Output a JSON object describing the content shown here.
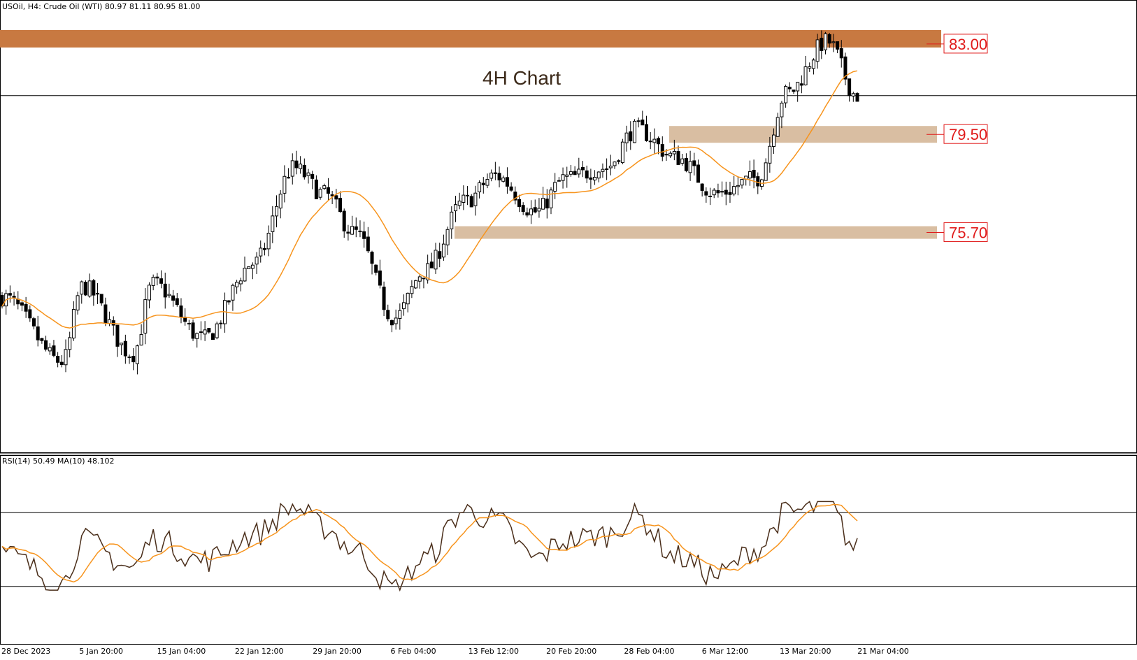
{
  "header": {
    "symbol_line": "USOil, H4:  Crude Oil (WTI)  80.97 81.11 80.95 81.00"
  },
  "annotation": {
    "title": "4H Chart"
  },
  "levels": [
    {
      "label": "83.00",
      "value": 83.0
    },
    {
      "label": "79.50",
      "value": 79.5
    },
    {
      "label": "75.70",
      "value": 75.7
    }
  ],
  "current_price": 81.0,
  "rsi": {
    "label": "RSI(14) 50.49 MA(10) 48.102",
    "upper_level": 70,
    "lower_level": 30
  },
  "x_axis_labels": [
    "28 Dec 2023",
    "5 Jan 20:00",
    "15 Jan 04:00",
    "22 Jan 12:00",
    "29 Jan 20:00",
    "6 Feb 04:00",
    "13 Feb 12:00",
    "20 Feb 20:00",
    "28 Feb 04:00",
    "6 Mar 12:00",
    "13 Mar 20:00",
    "21 Mar 04:00"
  ],
  "colors": {
    "candle": "#000000",
    "ma_line": "#f7941d",
    "rsi_line": "#4a2e1a",
    "zone_strong": "#c87941",
    "zone_light": "#d9bea2",
    "level_text": "#e01b1b"
  },
  "chart_data": {
    "type": "candlestick",
    "title": "4H Chart",
    "price_anchors": [
      {
        "date": "28 Dec 2023",
        "price": 73.2
      },
      {
        "date": "3 Jan 2024",
        "price": 70.7
      },
      {
        "date": "5 Jan 2024",
        "price": 73.6
      },
      {
        "date": "10 Jan 2024",
        "price": 71.0
      },
      {
        "date": "12 Jan 2024",
        "price": 73.7
      },
      {
        "date": "17 Jan 2024",
        "price": 71.6
      },
      {
        "date": "22 Jan 2024",
        "price": 74.5
      },
      {
        "date": "26 Jan 2024",
        "price": 78.2
      },
      {
        "date": "29 Jan 2024",
        "price": 77.2
      },
      {
        "date": "1 Feb 2024",
        "price": 75.7
      },
      {
        "date": "5 Feb 2024",
        "price": 72.4
      },
      {
        "date": "8 Feb 2024",
        "price": 74.2
      },
      {
        "date": "12 Feb 2024",
        "price": 76.9
      },
      {
        "date": "15 Feb 2024",
        "price": 77.9
      },
      {
        "date": "19 Feb 2024",
        "price": 76.5
      },
      {
        "date": "22 Feb 2024",
        "price": 77.8
      },
      {
        "date": "26 Feb 2024",
        "price": 78.2
      },
      {
        "date": "29 Feb 2024",
        "price": 79.7
      },
      {
        "date": "4 Mar 2024",
        "price": 78.6
      },
      {
        "date": "8 Mar 2024",
        "price": 77.2
      },
      {
        "date": "12 Mar 2024",
        "price": 77.8
      },
      {
        "date": "15 Mar 2024",
        "price": 81.1
      },
      {
        "date": "19 Mar 2024",
        "price": 83.1
      },
      {
        "date": "22 Mar 2024",
        "price": 81.0
      }
    ],
    "rsi_anchors": [
      {
        "date": "28 Dec 2023",
        "value": 48
      },
      {
        "date": "3 Jan 2024",
        "value": 32
      },
      {
        "date": "5 Jan 2024",
        "value": 55
      },
      {
        "date": "10 Jan 2024",
        "value": 40
      },
      {
        "date": "12 Jan 2024",
        "value": 56
      },
      {
        "date": "17 Jan 2024",
        "value": 44
      },
      {
        "date": "22 Jan 2024",
        "value": 58
      },
      {
        "date": "26 Jan 2024",
        "value": 73
      },
      {
        "date": "29 Jan 2024",
        "value": 62
      },
      {
        "date": "1 Feb 2024",
        "value": 50
      },
      {
        "date": "5 Feb 2024",
        "value": 29
      },
      {
        "date": "8 Feb 2024",
        "value": 45
      },
      {
        "date": "12 Feb 2024",
        "value": 71
      },
      {
        "date": "15 Feb 2024",
        "value": 66
      },
      {
        "date": "19 Feb 2024",
        "value": 45
      },
      {
        "date": "22 Feb 2024",
        "value": 55
      },
      {
        "date": "26 Feb 2024",
        "value": 58
      },
      {
        "date": "29 Feb 2024",
        "value": 68
      },
      {
        "date": "4 Mar 2024",
        "value": 46
      },
      {
        "date": "8 Mar 2024",
        "value": 36
      },
      {
        "date": "12 Mar 2024",
        "value": 50
      },
      {
        "date": "15 Mar 2024",
        "value": 70
      },
      {
        "date": "19 Mar 2024",
        "value": 74
      },
      {
        "date": "22 Mar 2024",
        "value": 50
      }
    ],
    "rsi_ylim": [
      0,
      100
    ]
  }
}
